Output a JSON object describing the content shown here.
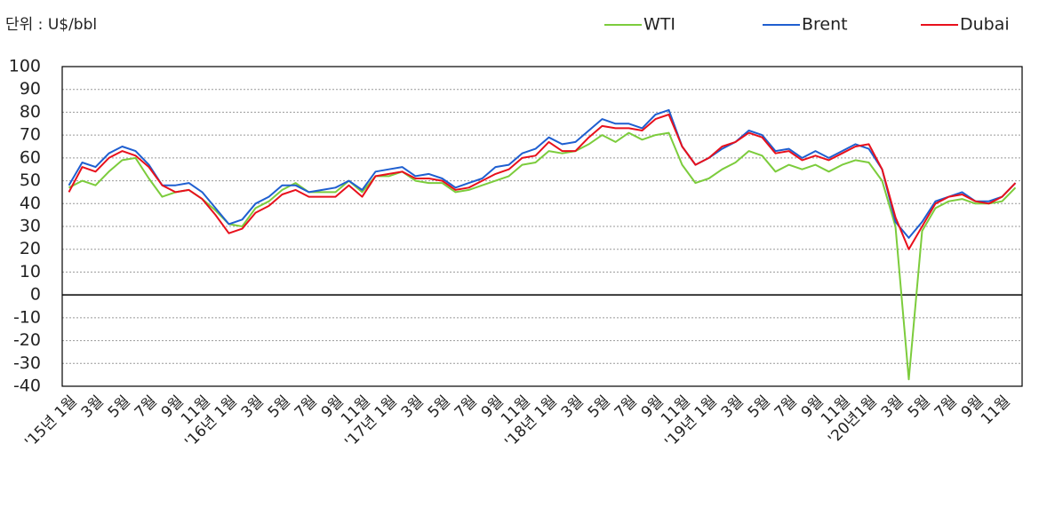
{
  "chart_data": {
    "type": "line",
    "unit": "단위 : U$/bbl",
    "categories": [
      "'15년 1월",
      null,
      "3월",
      null,
      "5월",
      null,
      "7월",
      null,
      "9월",
      null,
      "11월",
      null,
      "'16년 1월",
      null,
      "3월",
      null,
      "5월",
      null,
      "7월",
      null,
      "9월",
      null,
      "11월",
      null,
      "'17년 1월",
      null,
      "3월",
      null,
      "5월",
      null,
      "7월",
      null,
      "9월",
      null,
      "11월",
      null,
      "'18년 1월",
      null,
      "3월",
      null,
      "5월",
      null,
      "7월",
      null,
      "9월",
      null,
      "11월",
      null,
      "'19년 1월",
      null,
      "3월",
      null,
      "5월",
      null,
      "7월",
      null,
      "9월",
      null,
      "11월",
      null,
      "'20년1월",
      null,
      "3월",
      null,
      "5월",
      null,
      "7월",
      null,
      "9월",
      null,
      "11월",
      null
    ],
    "series": [
      {
        "name": "WTI",
        "color": "#7ccc3c",
        "values": [
          47,
          50,
          48,
          54,
          59,
          60,
          51,
          43,
          45,
          46,
          42,
          37,
          31,
          30,
          38,
          41,
          46,
          49,
          45,
          45,
          45,
          50,
          45,
          52,
          52,
          54,
          50,
          49,
          49,
          45,
          46,
          48,
          50,
          52,
          57,
          58,
          63,
          62,
          63,
          66,
          70,
          67,
          71,
          68,
          70,
          71,
          57,
          49,
          51,
          55,
          58,
          63,
          61,
          54,
          57,
          55,
          57,
          54,
          57,
          59,
          58,
          50,
          30,
          -37,
          28,
          38,
          41,
          42,
          40,
          40,
          41,
          47
        ]
      },
      {
        "name": "Brent",
        "color": "#1f5fd0",
        "values": [
          48,
          58,
          56,
          62,
          65,
          63,
          57,
          48,
          48,
          49,
          45,
          38,
          31,
          33,
          40,
          43,
          48,
          48,
          45,
          46,
          47,
          50,
          46,
          54,
          55,
          56,
          52,
          53,
          51,
          47,
          49,
          51,
          56,
          57,
          62,
          64,
          69,
          66,
          67,
          72,
          77,
          75,
          75,
          73,
          79,
          81,
          65,
          57,
          60,
          64,
          67,
          72,
          70,
          63,
          64,
          60,
          63,
          60,
          63,
          66,
          64,
          55,
          32,
          25,
          32,
          41,
          43,
          45,
          41,
          41,
          43,
          49
        ]
      },
      {
        "name": "Dubai",
        "color": "#e8101c",
        "values": [
          45,
          56,
          54,
          60,
          63,
          61,
          56,
          48,
          45,
          46,
          42,
          35,
          27,
          29,
          36,
          39,
          44,
          46,
          43,
          43,
          43,
          48,
          43,
          52,
          53,
          54,
          51,
          51,
          50,
          46,
          47,
          50,
          53,
          55,
          60,
          61,
          67,
          63,
          63,
          69,
          74,
          73,
          73,
          72,
          77,
          79,
          65,
          57,
          60,
          65,
          67,
          71,
          69,
          62,
          63,
          59,
          61,
          59,
          62,
          65,
          66,
          55,
          34,
          20,
          30,
          40,
          43,
          44,
          41,
          40,
          43,
          49
        ]
      }
    ],
    "ylim": [
      -40,
      100
    ],
    "yticks": [
      -40,
      -30,
      -20,
      -10,
      0,
      10,
      20,
      30,
      40,
      50,
      60,
      70,
      80,
      90,
      100
    ],
    "grid": true
  }
}
